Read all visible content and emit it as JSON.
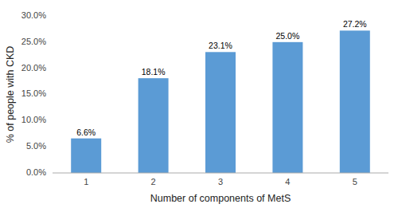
{
  "chart_data": {
    "type": "bar",
    "categories": [
      "1",
      "2",
      "3",
      "4",
      "5"
    ],
    "values": [
      6.6,
      18.1,
      23.1,
      25.0,
      27.2
    ],
    "value_labels": [
      "6.6%",
      "18.1%",
      "23.1%",
      "25.0%",
      "27.2%"
    ],
    "data_labels": true,
    "color": "#5b9bd5",
    "xlabel": "Number of components of MetS",
    "ylabel": "% of people with CKD",
    "ylim": [
      0,
      30
    ],
    "yticks": [
      {
        "value": 0,
        "label": "0.0%"
      },
      {
        "value": 5,
        "label": "5.0%"
      },
      {
        "value": 10,
        "label": "10.0%"
      },
      {
        "value": 15,
        "label": "15.0%"
      },
      {
        "value": 20,
        "label": "20.0%"
      },
      {
        "value": 25,
        "label": "25.0%"
      },
      {
        "value": 30,
        "label": "30.0%"
      }
    ],
    "grid": false
  }
}
